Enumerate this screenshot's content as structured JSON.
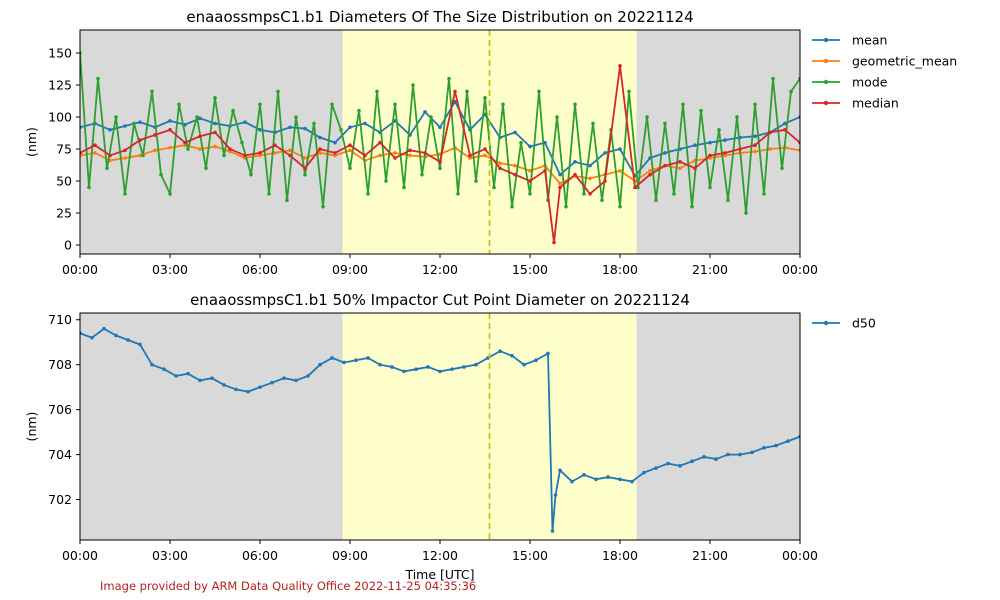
{
  "footer_text": "Image provided by ARM Data Quality Office 2022-11-25 04:35:36",
  "colors": {
    "mean": "#1f77b4",
    "geometric_mean": "#ff7f0e",
    "mode": "#2ca02c",
    "median": "#d62728",
    "night_shade": "#d9d9d9",
    "day_shade": "#ffffcc",
    "noon_line": "#bfbf00"
  },
  "chart_data": [
    {
      "type": "line",
      "title": "enaaossmpsC1.b1 Diameters Of The Size Distribution on 20221124",
      "xlabel": "",
      "ylabel": "(nm)",
      "xlim": [
        0,
        24
      ],
      "ylim": [
        -7,
        168
      ],
      "x_ticks": [
        "00:00",
        "03:00",
        "06:00",
        "09:00",
        "12:00",
        "15:00",
        "18:00",
        "21:00",
        "00:00"
      ],
      "y_ticks": [
        0,
        25,
        50,
        75,
        100,
        125,
        150
      ],
      "legend_placement": "outside-right",
      "shading": [
        {
          "type": "night",
          "from": 0,
          "to": 8.75
        },
        {
          "type": "day",
          "from": 8.75,
          "to": 18.55
        },
        {
          "type": "night",
          "from": 18.55,
          "to": 24
        }
      ],
      "solar_noon": 13.65,
      "series": [
        {
          "name": "mean",
          "x": [
            0,
            0.5,
            1,
            1.5,
            2,
            2.5,
            3,
            3.5,
            4,
            4.5,
            5,
            5.5,
            6,
            6.5,
            7,
            7.5,
            8,
            8.5,
            9,
            9.5,
            10,
            10.5,
            11,
            11.5,
            12,
            12.5,
            13,
            13.5,
            14,
            14.5,
            15,
            15.5,
            16,
            16.5,
            17,
            17.5,
            18,
            18.5,
            19,
            19.5,
            20,
            20.5,
            21,
            21.5,
            22,
            22.5,
            23,
            23.5,
            24
          ],
          "y": [
            92,
            95,
            90,
            93,
            96,
            92,
            97,
            94,
            99,
            95,
            93,
            96,
            90,
            88,
            92,
            91,
            84,
            80,
            92,
            95,
            88,
            97,
            86,
            104,
            92,
            112,
            90,
            102,
            84,
            88,
            77,
            80,
            55,
            65,
            62,
            72,
            75,
            54,
            68,
            72,
            75,
            78,
            80,
            82,
            84,
            85,
            88,
            95,
            100
          ]
        },
        {
          "name": "geometric_mean",
          "x": [
            0,
            0.5,
            1,
            1.5,
            2,
            2.5,
            3,
            3.5,
            4,
            4.5,
            5,
            5.5,
            6,
            6.5,
            7,
            7.5,
            8,
            8.5,
            9,
            9.5,
            10,
            10.5,
            11,
            11.5,
            12,
            12.5,
            13,
            13.5,
            14,
            14.5,
            15,
            15.5,
            16,
            16.5,
            17,
            17.5,
            18,
            18.5,
            19,
            19.5,
            20,
            20.5,
            21,
            21.5,
            22,
            22.5,
            23,
            23.5,
            24
          ],
          "y": [
            70,
            72,
            66,
            68,
            70,
            74,
            76,
            78,
            75,
            77,
            73,
            68,
            70,
            72,
            74,
            68,
            72,
            70,
            74,
            66,
            70,
            72,
            70,
            69,
            71,
            76,
            68,
            70,
            64,
            62,
            58,
            62,
            48,
            54,
            52,
            55,
            58,
            50,
            58,
            62,
            60,
            66,
            68,
            70,
            72,
            73,
            75,
            76,
            74
          ]
        },
        {
          "name": "mode",
          "x": [
            0,
            0.3,
            0.6,
            0.9,
            1.2,
            1.5,
            1.8,
            2.1,
            2.4,
            2.7,
            3,
            3.3,
            3.6,
            3.9,
            4.2,
            4.5,
            4.8,
            5.1,
            5.4,
            5.7,
            6,
            6.3,
            6.6,
            6.9,
            7.2,
            7.5,
            7.8,
            8.1,
            8.4,
            8.7,
            9,
            9.3,
            9.6,
            9.9,
            10.2,
            10.5,
            10.8,
            11.1,
            11.4,
            11.7,
            12,
            12.3,
            12.6,
            12.9,
            13.2,
            13.5,
            13.8,
            14.1,
            14.4,
            14.7,
            15,
            15.3,
            15.6,
            15.9,
            16.2,
            16.5,
            16.8,
            17.1,
            17.4,
            17.7,
            18,
            18.3,
            18.6,
            18.9,
            19.2,
            19.5,
            19.8,
            20.1,
            20.4,
            20.7,
            21,
            21.3,
            21.6,
            21.9,
            22.2,
            22.5,
            22.8,
            23.1,
            23.4,
            23.7,
            24
          ],
          "y": [
            150,
            45,
            130,
            60,
            100,
            40,
            95,
            70,
            120,
            55,
            40,
            110,
            75,
            100,
            60,
            115,
            70,
            105,
            80,
            55,
            110,
            40,
            120,
            35,
            100,
            55,
            95,
            30,
            110,
            90,
            60,
            105,
            40,
            120,
            50,
            110,
            45,
            125,
            55,
            100,
            60,
            130,
            40,
            120,
            50,
            115,
            45,
            110,
            30,
            80,
            40,
            120,
            35,
            100,
            30,
            110,
            40,
            95,
            35,
            90,
            30,
            120,
            45,
            100,
            35,
            95,
            40,
            110,
            30,
            105,
            45,
            90,
            35,
            100,
            25,
            110,
            40,
            130,
            60,
            120,
            130
          ]
        },
        {
          "name": "median",
          "x": [
            0,
            0.5,
            1,
            1.5,
            2,
            2.5,
            3,
            3.5,
            4,
            4.5,
            5,
            5.5,
            6,
            6.5,
            7,
            7.5,
            8,
            8.5,
            9,
            9.5,
            10,
            10.5,
            11,
            11.5,
            12,
            12.5,
            13,
            13.5,
            14,
            14.5,
            15,
            15.5,
            15.8,
            16,
            16.5,
            17,
            17.5,
            18,
            18.5,
            19,
            19.5,
            20,
            20.5,
            21,
            21.5,
            22,
            22.5,
            23,
            23.5,
            24
          ],
          "y": [
            72,
            78,
            70,
            74,
            82,
            86,
            90,
            80,
            85,
            88,
            75,
            70,
            72,
            78,
            70,
            60,
            75,
            72,
            78,
            70,
            80,
            68,
            74,
            72,
            65,
            120,
            70,
            75,
            60,
            55,
            50,
            58,
            2,
            45,
            55,
            40,
            50,
            140,
            45,
            55,
            62,
            65,
            60,
            70,
            72,
            75,
            78,
            88,
            90,
            80
          ]
        }
      ]
    },
    {
      "type": "line",
      "title": "enaaossmpsC1.b1 50% Impactor Cut Point Diameter on 20221124",
      "xlabel": "Time [UTC]",
      "ylabel": "(nm)",
      "xlim": [
        0,
        24
      ],
      "ylim": [
        700.2,
        710.3
      ],
      "x_ticks": [
        "00:00",
        "03:00",
        "06:00",
        "09:00",
        "12:00",
        "15:00",
        "18:00",
        "21:00",
        "00:00"
      ],
      "y_ticks": [
        702,
        704,
        706,
        708,
        710
      ],
      "legend_placement": "outside-right",
      "shading": [
        {
          "type": "night",
          "from": 0,
          "to": 8.75
        },
        {
          "type": "day",
          "from": 8.75,
          "to": 18.55
        },
        {
          "type": "night",
          "from": 18.55,
          "to": 24
        }
      ],
      "solar_noon": 13.65,
      "series": [
        {
          "name": "d50",
          "x": [
            0,
            0.4,
            0.8,
            1.2,
            1.6,
            2,
            2.4,
            2.8,
            3.2,
            3.6,
            4,
            4.4,
            4.8,
            5.2,
            5.6,
            6,
            6.4,
            6.8,
            7.2,
            7.6,
            8,
            8.4,
            8.8,
            9.2,
            9.6,
            10,
            10.4,
            10.8,
            11.2,
            11.6,
            12,
            12.4,
            12.8,
            13.2,
            13.6,
            14,
            14.4,
            14.8,
            15.2,
            15.6,
            15.75,
            15.85,
            16,
            16.4,
            16.8,
            17.2,
            17.6,
            18,
            18.4,
            18.8,
            19.2,
            19.6,
            20,
            20.4,
            20.8,
            21.2,
            21.6,
            22,
            22.4,
            22.8,
            23.2,
            23.6,
            24
          ],
          "y": [
            709.4,
            709.2,
            709.6,
            709.3,
            709.1,
            708.9,
            708.0,
            707.8,
            707.5,
            707.6,
            707.3,
            707.4,
            707.1,
            706.9,
            706.8,
            707.0,
            707.2,
            707.4,
            707.3,
            707.5,
            708.0,
            708.3,
            708.1,
            708.2,
            708.3,
            708.0,
            707.9,
            707.7,
            707.8,
            707.9,
            707.7,
            707.8,
            707.9,
            708.0,
            708.3,
            708.6,
            708.4,
            708.0,
            708.2,
            708.5,
            700.6,
            702.2,
            703.3,
            702.8,
            703.1,
            702.9,
            703.0,
            702.9,
            702.8,
            703.2,
            703.4,
            703.6,
            703.5,
            703.7,
            703.9,
            703.8,
            704.0,
            704.0,
            704.1,
            704.3,
            704.4,
            704.6,
            704.8
          ]
        }
      ]
    }
  ]
}
